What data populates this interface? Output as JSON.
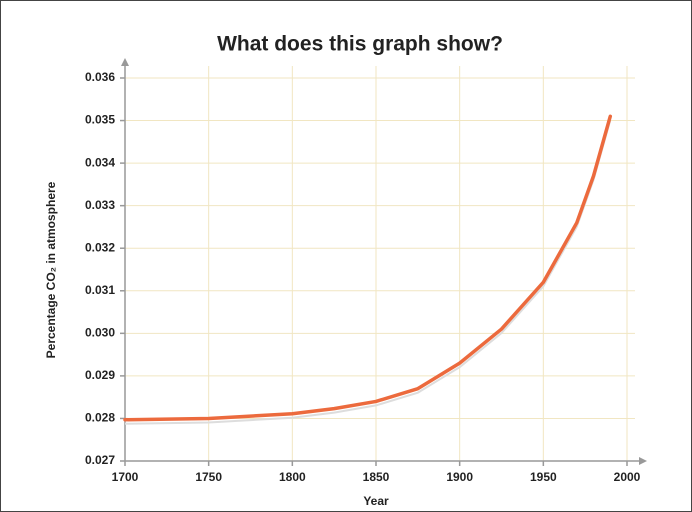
{
  "chart_data": {
    "type": "line",
    "title": "What does this graph show?",
    "x_label": "Year",
    "y_label": "Percentage CO₂ in atmosphere",
    "x": [
      1700,
      1750,
      1800,
      1825,
      1850,
      1875,
      1900,
      1925,
      1950,
      1970,
      1980,
      1990
    ],
    "series": [
      {
        "name": "CO₂",
        "color": "#ec6a3d",
        "values": [
          0.02797,
          0.028,
          0.02811,
          0.02823,
          0.0284,
          0.0287,
          0.0293,
          0.0301,
          0.0312,
          0.0326,
          0.0337,
          0.0351
        ]
      }
    ],
    "xlim": [
      1700,
      2000
    ],
    "xticks": [
      1700,
      1750,
      1800,
      1850,
      1900,
      1950,
      2000
    ],
    "ylim": [
      0.027,
      0.036
    ],
    "yticks": [
      0.027,
      0.028,
      0.029,
      {
        "value": 0.03,
        "label": "0.030"
      },
      0.031,
      0.032,
      0.033,
      0.034,
      0.035,
      0.036
    ],
    "grid": true
  }
}
